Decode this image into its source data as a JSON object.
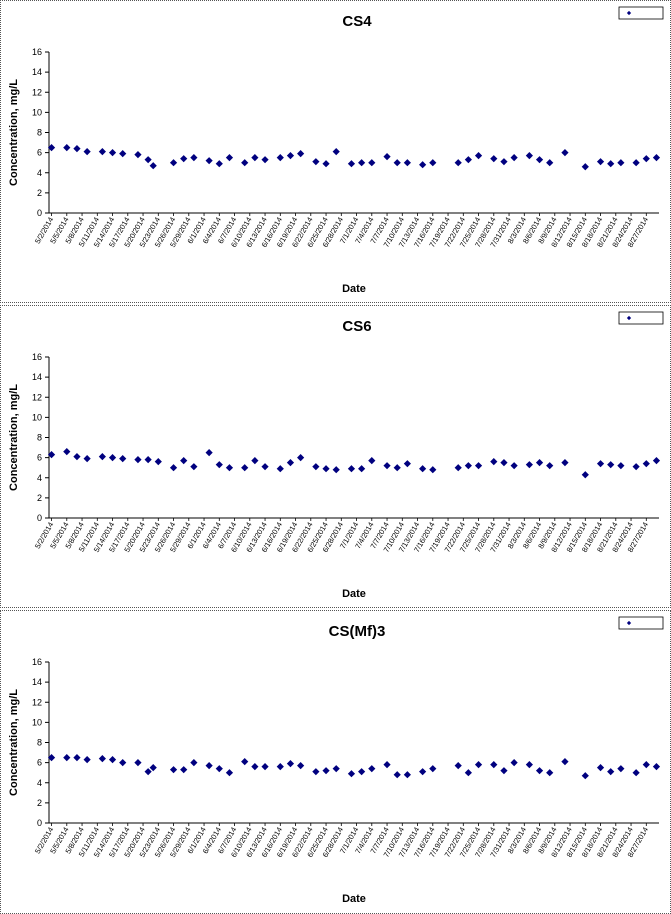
{
  "chart_data": [
    {
      "type": "scatter",
      "title": "CS4",
      "xlabel": "Date",
      "ylabel": "Concentration, mg/L",
      "ylim": [
        0,
        16
      ],
      "yticks": [
        "0",
        "2",
        "4",
        "6",
        "8",
        "10",
        "12",
        "14",
        "16"
      ],
      "grid": false,
      "legend": {
        "placement": "top-right",
        "entries": [
          ""
        ]
      },
      "marker_color": "#00007f",
      "x_tick_labels": [
        "5/2/2014",
        "5/5/2014",
        "5/8/2014",
        "5/11/2014",
        "5/14/2014",
        "5/17/2014",
        "5/20/2014",
        "5/23/2014",
        "5/26/2014",
        "5/29/2014",
        "6/1/2014",
        "6/4/2014",
        "6/7/2014",
        "6/10/2014",
        "6/13/2014",
        "6/16/2014",
        "6/19/2014",
        "6/22/2014",
        "6/25/2014",
        "6/28/2014",
        "7/1/2014",
        "7/4/2014",
        "7/7/2014",
        "7/10/2014",
        "7/13/2014",
        "7/16/2014",
        "7/19/2014",
        "7/22/2014",
        "7/25/2014",
        "7/28/2014",
        "7/31/2014",
        "8/3/2014",
        "8/6/2014",
        "8/9/2014",
        "8/12/2014",
        "8/15/2014",
        "8/18/2014",
        "8/21/2014",
        "8/24/2014",
        "8/27/2014"
      ],
      "series": [
        {
          "values": [
            [
              "5/2/2014",
              6.5
            ],
            [
              "5/5/2014",
              6.5
            ],
            [
              "5/7/2014",
              6.4
            ],
            [
              "5/9/2014",
              6.1
            ],
            [
              "5/12/2014",
              6.1
            ],
            [
              "5/14/2014",
              6.0
            ],
            [
              "5/16/2014",
              5.9
            ],
            [
              "5/19/2014",
              5.8
            ],
            [
              "5/21/2014",
              5.3
            ],
            [
              "5/22/2014",
              4.7
            ],
            [
              "5/26/2014",
              5.0
            ],
            [
              "5/28/2014",
              5.4
            ],
            [
              "5/30/2014",
              5.5
            ],
            [
              "6/2/2014",
              5.2
            ],
            [
              "6/4/2014",
              4.9
            ],
            [
              "6/6/2014",
              5.5
            ],
            [
              "6/9/2014",
              5.0
            ],
            [
              "6/11/2014",
              5.5
            ],
            [
              "6/13/2014",
              5.3
            ],
            [
              "6/16/2014",
              5.5
            ],
            [
              "6/18/2014",
              5.7
            ],
            [
              "6/20/2014",
              5.9
            ],
            [
              "6/23/2014",
              5.1
            ],
            [
              "6/25/2014",
              4.9
            ],
            [
              "6/27/2014",
              6.1
            ],
            [
              "6/30/2014",
              4.9
            ],
            [
              "7/2/2014",
              5.0
            ],
            [
              "7/4/2014",
              5.0
            ],
            [
              "7/7/2014",
              5.6
            ],
            [
              "7/9/2014",
              5.0
            ],
            [
              "7/11/2014",
              5.0
            ],
            [
              "7/14/2014",
              4.8
            ],
            [
              "7/16/2014",
              5.0
            ],
            [
              "7/21/2014",
              5.0
            ],
            [
              "7/23/2014",
              5.3
            ],
            [
              "7/25/2014",
              5.7
            ],
            [
              "7/28/2014",
              5.4
            ],
            [
              "7/30/2014",
              5.1
            ],
            [
              "8/1/2014",
              5.5
            ],
            [
              "8/4/2014",
              5.7
            ],
            [
              "8/6/2014",
              5.3
            ],
            [
              "8/8/2014",
              5.0
            ],
            [
              "8/11/2014",
              6.0
            ],
            [
              "8/15/2014",
              4.6
            ],
            [
              "8/18/2014",
              5.1
            ],
            [
              "8/20/2014",
              4.9
            ],
            [
              "8/22/2014",
              5.0
            ],
            [
              "8/25/2014",
              5.0
            ],
            [
              "8/27/2014",
              5.4
            ],
            [
              "8/29/2014",
              5.5
            ]
          ]
        }
      ]
    },
    {
      "type": "scatter",
      "title": "CS6",
      "xlabel": "Date",
      "ylabel": "Concentration, mg/L",
      "ylim": [
        0,
        16
      ],
      "yticks": [
        "0",
        "2",
        "4",
        "6",
        "8",
        "10",
        "12",
        "14",
        "16"
      ],
      "grid": false,
      "legend": {
        "placement": "top-right",
        "entries": [
          ""
        ]
      },
      "marker_color": "#00007f",
      "x_tick_labels": [
        "5/2/2014",
        "5/5/2014",
        "5/8/2014",
        "5/11/2014",
        "5/14/2014",
        "5/17/2014",
        "5/20/2014",
        "5/23/2014",
        "5/26/2014",
        "5/29/2014",
        "6/1/2014",
        "6/4/2014",
        "6/7/2014",
        "6/10/2014",
        "6/13/2014",
        "6/16/2014",
        "6/19/2014",
        "6/22/2014",
        "6/25/2014",
        "6/28/2014",
        "7/1/2014",
        "7/4/2014",
        "7/7/2014",
        "7/10/2014",
        "7/13/2014",
        "7/16/2014",
        "7/19/2014",
        "7/22/2014",
        "7/25/2014",
        "7/28/2014",
        "7/31/2014",
        "8/3/2014",
        "8/6/2014",
        "8/9/2014",
        "8/12/2014",
        "8/15/2014",
        "8/18/2014",
        "8/21/2014",
        "8/24/2014",
        "8/27/2014"
      ],
      "series": [
        {
          "values": [
            [
              "5/2/2014",
              6.3
            ],
            [
              "5/5/2014",
              6.6
            ],
            [
              "5/7/2014",
              6.1
            ],
            [
              "5/9/2014",
              5.9
            ],
            [
              "5/12/2014",
              6.1
            ],
            [
              "5/14/2014",
              6.0
            ],
            [
              "5/16/2014",
              5.9
            ],
            [
              "5/19/2014",
              5.8
            ],
            [
              "5/21/2014",
              5.8
            ],
            [
              "5/23/2014",
              5.6
            ],
            [
              "5/26/2014",
              5.0
            ],
            [
              "5/28/2014",
              5.7
            ],
            [
              "5/30/2014",
              5.1
            ],
            [
              "6/2/2014",
              6.5
            ],
            [
              "6/4/2014",
              5.3
            ],
            [
              "6/6/2014",
              5.0
            ],
            [
              "6/9/2014",
              5.0
            ],
            [
              "6/11/2014",
              5.7
            ],
            [
              "6/13/2014",
              5.1
            ],
            [
              "6/16/2014",
              4.9
            ],
            [
              "6/18/2014",
              5.5
            ],
            [
              "6/20/2014",
              6.0
            ],
            [
              "6/23/2014",
              5.1
            ],
            [
              "6/25/2014",
              4.9
            ],
            [
              "6/27/2014",
              4.8
            ],
            [
              "6/30/2014",
              4.9
            ],
            [
              "7/2/2014",
              4.9
            ],
            [
              "7/4/2014",
              5.7
            ],
            [
              "7/7/2014",
              5.2
            ],
            [
              "7/9/2014",
              5.0
            ],
            [
              "7/11/2014",
              5.4
            ],
            [
              "7/14/2014",
              4.9
            ],
            [
              "7/16/2014",
              4.8
            ],
            [
              "7/21/2014",
              5.0
            ],
            [
              "7/23/2014",
              5.2
            ],
            [
              "7/25/2014",
              5.2
            ],
            [
              "7/28/2014",
              5.6
            ],
            [
              "7/30/2014",
              5.5
            ],
            [
              "8/1/2014",
              5.2
            ],
            [
              "8/4/2014",
              5.3
            ],
            [
              "8/6/2014",
              5.5
            ],
            [
              "8/8/2014",
              5.2
            ],
            [
              "8/11/2014",
              5.5
            ],
            [
              "8/15/2014",
              4.3
            ],
            [
              "8/18/2014",
              5.4
            ],
            [
              "8/20/2014",
              5.3
            ],
            [
              "8/22/2014",
              5.2
            ],
            [
              "8/25/2014",
              5.1
            ],
            [
              "8/27/2014",
              5.4
            ],
            [
              "8/29/2014",
              5.7
            ]
          ]
        }
      ]
    },
    {
      "type": "scatter",
      "title": "CS(Mf)3",
      "xlabel": "Date",
      "ylabel": "Concentration, mg/L",
      "ylim": [
        0,
        16
      ],
      "yticks": [
        "0",
        "2",
        "4",
        "6",
        "8",
        "10",
        "12",
        "14",
        "16"
      ],
      "grid": false,
      "legend": {
        "placement": "top-right",
        "entries": [
          ""
        ]
      },
      "marker_color": "#00007f",
      "x_tick_labels": [
        "5/2/2014",
        "5/5/2014",
        "5/8/2014",
        "5/11/2014",
        "5/14/2014",
        "5/17/2014",
        "5/20/2014",
        "5/23/2014",
        "5/26/2014",
        "5/29/2014",
        "6/1/2014",
        "6/4/2014",
        "6/7/2014",
        "6/10/2014",
        "6/13/2014",
        "6/16/2014",
        "6/19/2014",
        "6/22/2014",
        "6/25/2014",
        "6/28/2014",
        "7/1/2014",
        "7/4/2014",
        "7/7/2014",
        "7/10/2014",
        "7/13/2014",
        "7/16/2014",
        "7/19/2014",
        "7/22/2014",
        "7/25/2014",
        "7/28/2014",
        "7/31/2014",
        "8/3/2014",
        "8/6/2014",
        "8/9/2014",
        "8/12/2014",
        "8/15/2014",
        "8/18/2014",
        "8/21/2014",
        "8/24/2014",
        "8/27/2014"
      ],
      "series": [
        {
          "values": [
            [
              "5/2/2014",
              6.5
            ],
            [
              "5/5/2014",
              6.5
            ],
            [
              "5/7/2014",
              6.5
            ],
            [
              "5/9/2014",
              6.3
            ],
            [
              "5/12/2014",
              6.4
            ],
            [
              "5/14/2014",
              6.3
            ],
            [
              "5/16/2014",
              6.0
            ],
            [
              "5/19/2014",
              6.0
            ],
            [
              "5/21/2014",
              5.1
            ],
            [
              "5/22/2014",
              5.5
            ],
            [
              "5/26/2014",
              5.3
            ],
            [
              "5/28/2014",
              5.3
            ],
            [
              "5/30/2014",
              6.0
            ],
            [
              "6/2/2014",
              5.7
            ],
            [
              "6/4/2014",
              5.4
            ],
            [
              "6/6/2014",
              5.0
            ],
            [
              "6/9/2014",
              6.1
            ],
            [
              "6/11/2014",
              5.6
            ],
            [
              "6/13/2014",
              5.6
            ],
            [
              "6/16/2014",
              5.6
            ],
            [
              "6/18/2014",
              5.9
            ],
            [
              "6/20/2014",
              5.7
            ],
            [
              "6/23/2014",
              5.1
            ],
            [
              "6/25/2014",
              5.2
            ],
            [
              "6/27/2014",
              5.4
            ],
            [
              "6/30/2014",
              4.9
            ],
            [
              "7/2/2014",
              5.1
            ],
            [
              "7/4/2014",
              5.4
            ],
            [
              "7/7/2014",
              5.8
            ],
            [
              "7/9/2014",
              4.8
            ],
            [
              "7/11/2014",
              4.8
            ],
            [
              "7/14/2014",
              5.1
            ],
            [
              "7/16/2014",
              5.4
            ],
            [
              "7/21/2014",
              5.7
            ],
            [
              "7/23/2014",
              5.0
            ],
            [
              "7/25/2014",
              5.8
            ],
            [
              "7/28/2014",
              5.8
            ],
            [
              "7/30/2014",
              5.2
            ],
            [
              "8/1/2014",
              6.0
            ],
            [
              "8/4/2014",
              5.8
            ],
            [
              "8/6/2014",
              5.2
            ],
            [
              "8/8/2014",
              5.0
            ],
            [
              "8/11/2014",
              6.1
            ],
            [
              "8/15/2014",
              4.7
            ],
            [
              "8/18/2014",
              5.5
            ],
            [
              "8/20/2014",
              5.1
            ],
            [
              "8/22/2014",
              5.4
            ],
            [
              "8/25/2014",
              5.0
            ],
            [
              "8/27/2014",
              5.8
            ],
            [
              "8/29/2014",
              5.6
            ]
          ]
        }
      ]
    }
  ]
}
